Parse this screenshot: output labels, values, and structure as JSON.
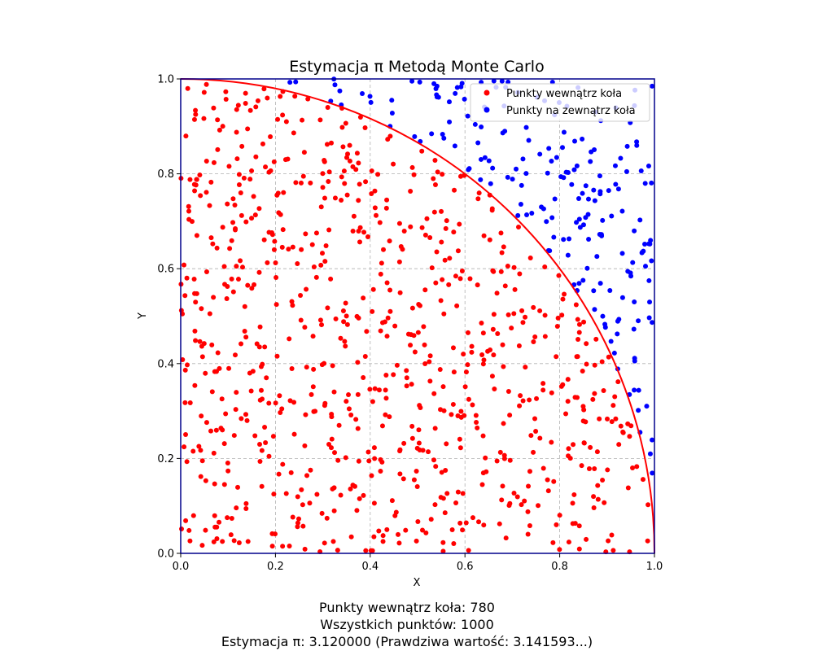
{
  "chart_data": {
    "type": "scatter",
    "title": "Estymacja π Metodą Monte Carlo",
    "xlabel": "X",
    "ylabel": "Y",
    "xlim": [
      0.0,
      1.0
    ],
    "ylim": [
      0.0,
      1.0
    ],
    "xticks": [
      "0.0",
      "0.2",
      "0.4",
      "0.6",
      "0.8",
      "1.0"
    ],
    "yticks": [
      "0.0",
      "0.2",
      "0.4",
      "0.6",
      "0.8",
      "1.0"
    ],
    "grid": true,
    "legend_position": "top-right",
    "point_count": 1000,
    "inside_count": 780,
    "series": [
      {
        "name": "Punkty wewnątrz koła",
        "color": "#ff0000",
        "region": "inside quarter circle x²+y²≤1"
      },
      {
        "name": "Punkty na zewnątrz koła",
        "color": "#0000ff",
        "region": "outside quarter circle x²+y²>1"
      }
    ],
    "boundary": {
      "type": "quarter-circle",
      "radius": 1.0,
      "color": "#ff0000"
    },
    "frame_color": "#00008b"
  },
  "stats": {
    "inside": "Punkty wewnątrz koła: 780",
    "total": "Wszystkich punktów: 1000",
    "estimate": "Estymacja π: 3.120000 (Prawdziwa wartość: 3.141593...)"
  }
}
